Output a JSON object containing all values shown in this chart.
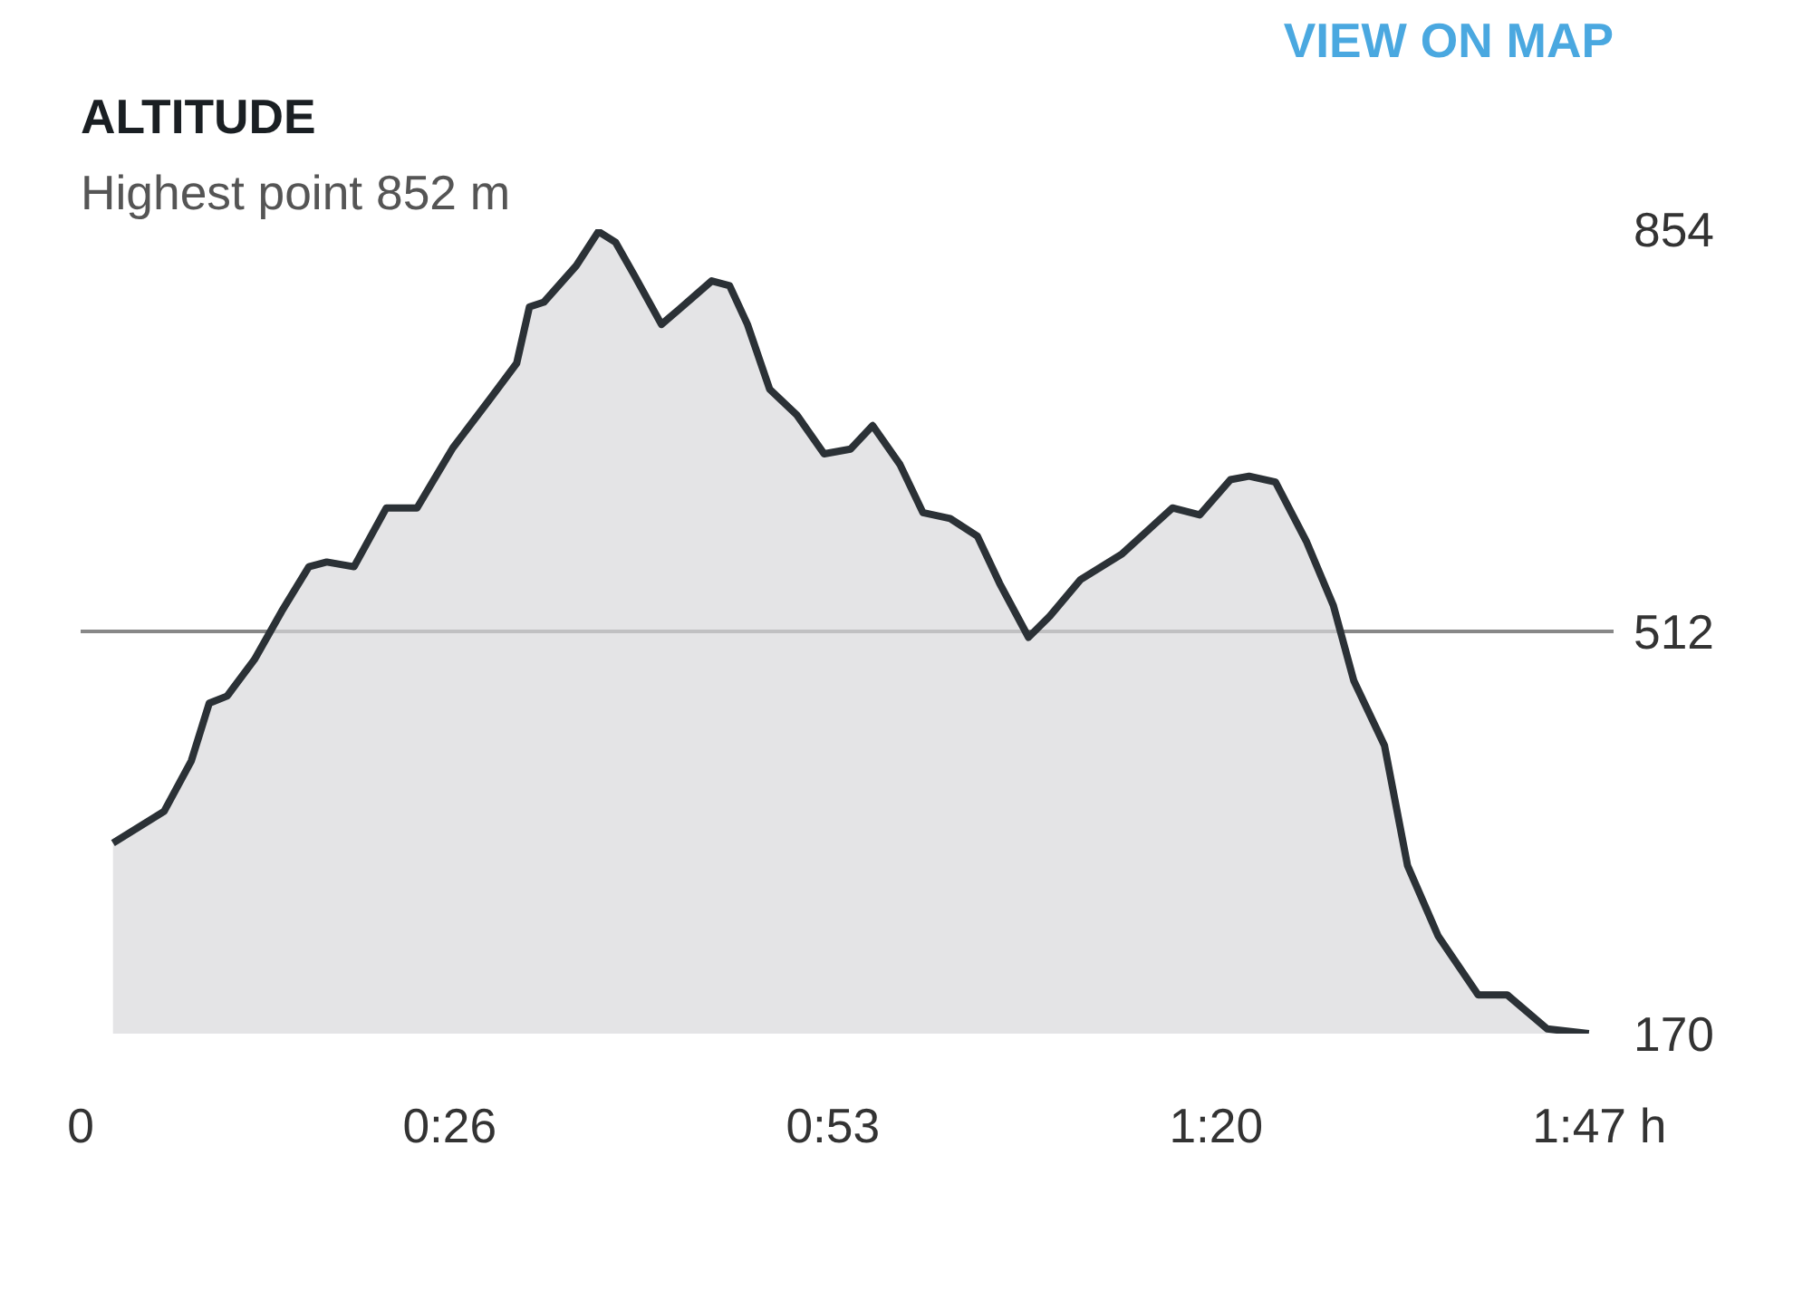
{
  "chart_data": {
    "type": "area",
    "title": "ALTITUDE",
    "subtitle": "Highest point 852 m",
    "annotations": [
      "VIEW ON MAP"
    ],
    "x": [
      0.038,
      0.098,
      0.13,
      0.151,
      0.172,
      0.204,
      0.236,
      0.268,
      0.289,
      0.321,
      0.359,
      0.395,
      0.437,
      0.48,
      0.512,
      0.527,
      0.544,
      0.582,
      0.608,
      0.628,
      0.65,
      0.682,
      0.703,
      0.741,
      0.762,
      0.783,
      0.809,
      0.841,
      0.873,
      0.904,
      0.93,
      0.962,
      0.989,
      1.021,
      1.053,
      1.079,
      1.113,
      1.138,
      1.174,
      1.223,
      1.282,
      1.314,
      1.35,
      1.372,
      1.403,
      1.439,
      1.471,
      1.495,
      1.531,
      1.558,
      1.594,
      1.641,
      1.675,
      1.722,
      1.771
    ],
    "series": [
      {
        "color": "#2b3136",
        "values": [
          332,
          359,
          402,
          451,
          457,
          488,
          529,
          567,
          571,
          567,
          617,
          617,
          668,
          709,
          740,
          788,
          792,
          823,
          852,
          843,
          815,
          773,
          786,
          810,
          806,
          773,
          718,
          696,
          663,
          667,
          687,
          654,
          613,
          608,
          593,
          553,
          507,
          525,
          556,
          578,
          617,
          611,
          641,
          644,
          639,
          589,
          534,
          470,
          415,
          313,
          253,
          203,
          203,
          174,
          170
        ]
      }
    ],
    "xlim": [
      0,
      1.8
    ],
    "xticks": [
      0,
      {
        "value": 0.4333,
        "label": "0:26"
      },
      {
        "value": 0.8833,
        "label": "0:53"
      },
      {
        "value": 1.3333,
        "label": "1:20"
      },
      {
        "value": 1.7833,
        "label": "1:47 h"
      }
    ],
    "ylim": [
      170,
      854
    ],
    "yticks": [
      170,
      512,
      854
    ],
    "grid": "y"
  }
}
